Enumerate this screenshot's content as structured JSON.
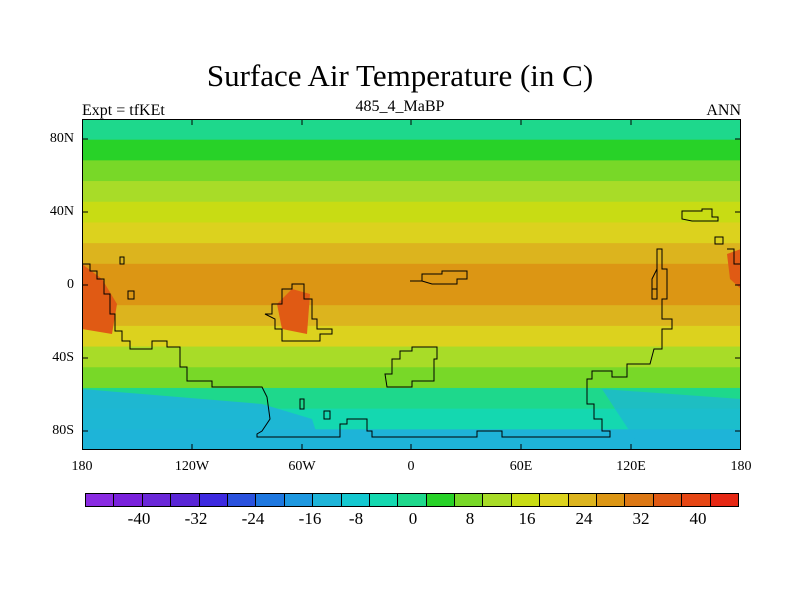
{
  "title": "Surface Air Temperature (in C)",
  "subtitle_left": "Expt = tfKEt",
  "subtitle_center": "485_4_MaBP",
  "subtitle_right": "ANN",
  "lat_labels": [
    "80N",
    "40N",
    "0",
    "40S",
    "80S"
  ],
  "lon_labels": [
    "180",
    "120W",
    "60W",
    "0",
    "60E",
    "120E",
    "180"
  ],
  "colorbar": {
    "colors": [
      "#8a2be2",
      "#7a22dc",
      "#6a28d8",
      "#5a26d6",
      "#3d2ae0",
      "#2a52de",
      "#1e78e0",
      "#1e98e0",
      "#1eb4d8",
      "#14c8d0",
      "#14d8b0",
      "#1ed88c",
      "#28d228",
      "#78d828",
      "#a8dc28",
      "#c8dc14",
      "#dcd21e",
      "#dcb41e",
      "#dc9614",
      "#dc7814",
      "#e05a14",
      "#e64614",
      "#e62814"
    ],
    "tick_labels": [
      "-40",
      "-32",
      "-24",
      "-16",
      "-8",
      "0",
      "8",
      "16",
      "24",
      "32",
      "40"
    ]
  },
  "map_data": {
    "projection": "cylindrical-equidistant",
    "lon_range": [
      -180,
      180
    ],
    "lat_range": [
      -90,
      90
    ],
    "variable": "surface air temperature",
    "units": "C",
    "band_colors_north_to_south": [
      "#1ed88c",
      "#28d228",
      "#78d828",
      "#a8dc28",
      "#c8dc14",
      "#dcd21e",
      "#dcb41e",
      "#dc9614",
      "#dc9614",
      "#dcb41e",
      "#dcd21e",
      "#a8dc28",
      "#78d828",
      "#1ed88c",
      "#14d8b0",
      "#1eb4d8"
    ]
  }
}
